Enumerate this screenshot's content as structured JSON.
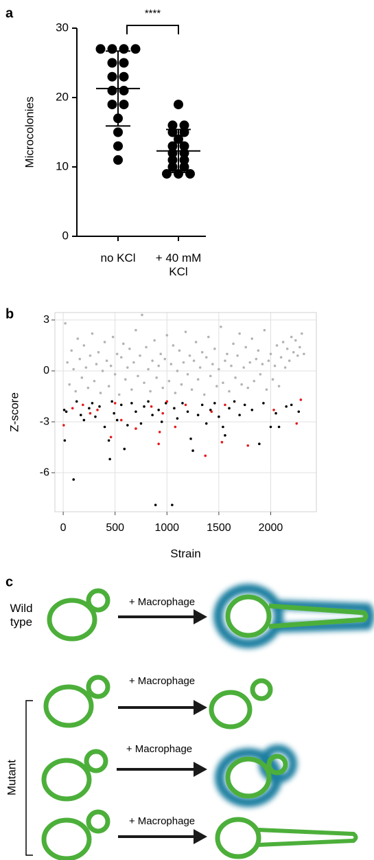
{
  "panel_labels": [
    "a",
    "b",
    "c"
  ],
  "chart_data": [
    {
      "type": "strip",
      "ylabel": "Microcolonies",
      "categories": [
        "no KCl",
        "+ 40 mM KCl"
      ],
      "values": [
        [
          27,
          27,
          27,
          27,
          25,
          25,
          23,
          23,
          21,
          21,
          19,
          19,
          17,
          15,
          13,
          11
        ],
        [
          19,
          16,
          16,
          15,
          15,
          14,
          13,
          13,
          12,
          12,
          11,
          11,
          10,
          10,
          9,
          9,
          9
        ]
      ],
      "mean": [
        21.3,
        12.3
      ],
      "sd": [
        5.4,
        3.1
      ],
      "color": "#000000",
      "ylim": [
        0,
        30
      ],
      "yticks": [
        0,
        10,
        20,
        30
      ],
      "annotation": "****"
    },
    {
      "type": "scatter",
      "xlabel": "Strain",
      "ylabel": "Z-score",
      "grid": true,
      "xlim": [
        -80,
        2440
      ],
      "ylim": [
        -8.3,
        3.44
      ],
      "xticks": [
        0,
        500,
        1000,
        1500,
        2000
      ],
      "yticks": [
        3,
        0,
        -3,
        -6
      ],
      "series": [
        {
          "color": "#b3b3b3",
          "x": [
            20,
            40,
            60,
            80,
            100,
            120,
            140,
            160,
            180,
            200,
            220,
            240,
            260,
            280,
            300,
            320,
            340,
            360,
            380,
            400,
            420,
            440,
            460,
            480,
            500,
            520,
            540,
            560,
            580,
            600,
            620,
            640,
            660,
            680,
            700,
            720,
            740,
            760,
            780,
            800,
            820,
            840,
            860,
            880,
            900,
            920,
            940,
            960,
            980,
            1000,
            1020,
            1040,
            1060,
            1080,
            1100,
            1120,
            1140,
            1160,
            1180,
            1200,
            1220,
            1240,
            1260,
            1280,
            1300,
            1320,
            1340,
            1360,
            1380,
            1400,
            1420,
            1440,
            1460,
            1480,
            1500,
            1520,
            1540,
            1560,
            1580,
            1600,
            1620,
            1640,
            1660,
            1680,
            1700,
            1720,
            1740,
            1760,
            1780,
            1800,
            1820,
            1840,
            1860,
            1880,
            1900,
            1920,
            1940,
            1960,
            1980,
            2000,
            2020,
            2040,
            2060,
            2080,
            2100,
            2120,
            2140,
            2160,
            2180,
            2200,
            2220,
            2240,
            2260,
            2280,
            2300,
            2320
          ],
          "values": [
            2.8,
            0.5,
            -0.8,
            1.2,
            0.1,
            -1.2,
            1.9,
            0.7,
            -0.4,
            1.5,
            0.2,
            -1.0,
            0.9,
            2.2,
            -0.6,
            0.4,
            1.1,
            -1.3,
            0.0,
            1.7,
            0.6,
            -0.9,
            0.3,
            2.0,
            -0.2,
            1.0,
            -1.4,
            0.8,
            1.6,
            -0.5,
            0.2,
            1.3,
            -1.1,
            0.5,
            2.4,
            -0.3,
            0.9,
            3.3,
            -0.7,
            1.4,
            0.1,
            -1.2,
            0.6,
            1.8,
            -0.4,
            0.3,
            1.0,
            -1.0,
            0.7,
            2.1,
            -0.6,
            0.4,
            1.5,
            -1.3,
            0.0,
            1.2,
            -0.8,
            0.5,
            2.3,
            -0.2,
            0.9,
            -1.1,
            0.6,
            1.7,
            -0.5,
            0.2,
            1.1,
            -1.4,
            0.8,
            2.0,
            -0.3,
            0.4,
            1.3,
            -0.9,
            0.1,
            2.6,
            -0.7,
            0.6,
            1.0,
            -1.2,
            0.3,
            1.6,
            -0.4,
            0.9,
            2.2,
            -0.8,
            0.2,
            1.4,
            -1.0,
            0.5,
            1.9,
            -0.6,
            0.7,
            1.2,
            -0.2,
            0.4,
            2.4,
            -1.1,
            0.6,
            1.0,
            -0.5,
            0.3,
            1.5,
            -0.9,
            0.8,
            1.7,
            0.2,
            1.3,
            0.6,
            2.0,
            1.1,
            1.8,
            0.9,
            1.4,
            2.2,
            1.0
          ]
        },
        {
          "color": "#000000",
          "x": [
            10,
            15,
            30,
            100,
            130,
            170,
            200,
            250,
            280,
            310,
            350,
            400,
            440,
            450,
            470,
            490,
            520,
            560,
            590,
            620,
            660,
            700,
            750,
            780,
            820,
            860,
            890,
            920,
            950,
            990,
            1050,
            1070,
            1100,
            1150,
            1200,
            1230,
            1250,
            1300,
            1340,
            1380,
            1420,
            1460,
            1500,
            1540,
            1560,
            1600,
            1650,
            1700,
            1750,
            1820,
            1890,
            1930,
            2000,
            2050,
            2080,
            2150,
            2200,
            2270
          ],
          "values": [
            -2.3,
            -4.1,
            -2.4,
            -6.4,
            -1.8,
            -2.6,
            -2.9,
            -2.2,
            -1.9,
            -2.7,
            -2.1,
            -3.3,
            -4.1,
            -5.2,
            -1.8,
            -2.5,
            -2.9,
            -2.0,
            -4.6,
            -3.2,
            -1.9,
            -2.4,
            -3.1,
            -2.1,
            -1.8,
            -2.6,
            -7.9,
            -2.3,
            -3.0,
            -1.9,
            -7.9,
            -2.2,
            -2.8,
            -1.9,
            -2.4,
            -4.0,
            -4.7,
            -2.6,
            -2.0,
            -3.1,
            -2.3,
            -1.9,
            -2.7,
            -3.3,
            -3.8,
            -2.2,
            -1.8,
            -2.6,
            -2.0,
            -2.3,
            -4.3,
            -1.9,
            -3.3,
            -2.5,
            -3.3,
            -2.1,
            -2.0,
            -2.4
          ]
        },
        {
          "color": "#e41a1c",
          "x": [
            5,
            90,
            190,
            260,
            330,
            460,
            500,
            560,
            700,
            850,
            920,
            930,
            960,
            1000,
            1080,
            1180,
            1370,
            1430,
            1530,
            1560,
            1780,
            2030,
            2250,
            2290
          ],
          "values": [
            -3.2,
            -2.2,
            -2.0,
            -2.5,
            -2.3,
            -3.9,
            -1.9,
            -2.9,
            -3.4,
            -2.1,
            -4.3,
            -3.6,
            -2.5,
            -1.8,
            -3.3,
            -2.0,
            -5.0,
            -2.4,
            -4.2,
            -2.0,
            -4.4,
            -2.3,
            -3.1,
            -1.7
          ]
        }
      ]
    }
  ],
  "diagram": {
    "rows": [
      {
        "label": "Wild type",
        "arrow": "+ Macrophage"
      },
      {
        "arrow": "+ Macrophage"
      },
      {
        "arrow": "+ Macrophage"
      },
      {
        "arrow": "+ Macrophage"
      }
    ],
    "group_label": "Mutant"
  }
}
